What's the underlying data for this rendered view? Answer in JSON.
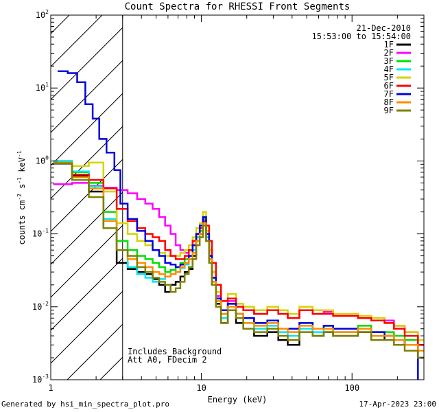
{
  "chart_data": {
    "type": "line",
    "scale": "log-log",
    "title": "Count Spectra for RHESSI Front Segments",
    "xlabel": "Energy (keV)",
    "ylabel_parts": [
      "counts cm",
      "-2",
      " s",
      "-1",
      " keV",
      "-1"
    ],
    "xlim": [
      1,
      300
    ],
    "ylim": [
      0.001,
      100
    ],
    "x_ticks": [
      {
        "value": 1,
        "label": "1"
      },
      {
        "value": 10,
        "label": "10"
      },
      {
        "value": 100,
        "label": "100"
      }
    ],
    "y_ticks": [
      {
        "value": 0.001,
        "base": "10",
        "exp": "-3"
      },
      {
        "value": 0.01,
        "base": "10",
        "exp": "-2"
      },
      {
        "value": 0.1,
        "base": "10",
        "exp": "-1"
      },
      {
        "value": 1,
        "base": "10",
        "exp": "0"
      },
      {
        "value": 10,
        "base": "10",
        "exp": "1"
      },
      {
        "value": 100,
        "base": "10",
        "exp": "2"
      }
    ],
    "attenuator_threshold_kev": 3,
    "annotations": {
      "date": "21-Dec-2010",
      "time_range": "15:53:00 to 15:54:00",
      "bottom_line1": "Includes_Background",
      "bottom_line2": "Att A0, FDecim 2"
    },
    "series": [
      {
        "name": "1F",
        "color": "#000000",
        "energies": [
          1.2,
          1.6,
          2.0,
          2.5,
          3.0,
          3.5,
          4.0,
          4.5,
          5.0,
          5.5,
          6.0,
          6.5,
          7.0,
          7.5,
          8.0,
          8.5,
          9.0,
          9.5,
          10.0,
          10.5,
          11.0,
          11.5,
          12.0,
          13.0,
          14.0,
          16.0,
          18.0,
          20.0,
          25.0,
          30.0,
          35.0,
          40.0,
          50.0,
          60.0,
          70.0,
          80.0,
          100.0,
          120.0,
          150.0,
          180.0,
          200.0,
          250.0,
          300.0
        ],
        "values": [
          0.92,
          0.62,
          0.38,
          0.12,
          0.04,
          0.033,
          0.03,
          0.028,
          0.024,
          0.02,
          0.016,
          0.02,
          0.022,
          0.026,
          0.03,
          0.033,
          0.05,
          0.08,
          0.1,
          0.15,
          0.08,
          0.045,
          0.02,
          0.011,
          0.006,
          0.01,
          0.006,
          0.005,
          0.004,
          0.0045,
          0.0035,
          0.003,
          0.005,
          0.004,
          0.0045,
          0.004,
          0.004,
          0.0045,
          0.0035,
          0.004,
          0.0035,
          0.003,
          0.002
        ]
      },
      {
        "name": "2F",
        "color": "#ff00ff",
        "energies": [
          1.2,
          1.6,
          2.0,
          2.5,
          3.0,
          3.5,
          4.0,
          4.5,
          5.0,
          5.5,
          6.0,
          6.5,
          7.0,
          7.5,
          8.0,
          8.5,
          9.0,
          9.5,
          10.0,
          10.5,
          11.0,
          11.5,
          12.0,
          13.0,
          14.0,
          16.0,
          18.0,
          20.0,
          25.0,
          30.0,
          35.0,
          40.0,
          50.0,
          60.0,
          70.0,
          80.0,
          100.0,
          120.0,
          150.0,
          180.0,
          200.0,
          250.0,
          300.0
        ],
        "values": [
          0.48,
          0.5,
          0.46,
          0.43,
          0.4,
          0.36,
          0.3,
          0.26,
          0.22,
          0.17,
          0.13,
          0.1,
          0.07,
          0.06,
          0.055,
          0.06,
          0.07,
          0.1,
          0.12,
          0.14,
          0.1,
          0.06,
          0.03,
          0.014,
          0.009,
          0.012,
          0.01,
          0.009,
          0.008,
          0.009,
          0.008,
          0.007,
          0.009,
          0.008,
          0.0085,
          0.008,
          0.008,
          0.0075,
          0.007,
          0.0065,
          0.0055,
          0.0045,
          0.003
        ]
      },
      {
        "name": "3F",
        "color": "#00e000",
        "energies": [
          1.2,
          1.6,
          2.0,
          2.5,
          3.0,
          3.5,
          4.0,
          4.5,
          5.0,
          5.5,
          6.0,
          6.5,
          7.0,
          7.5,
          8.0,
          8.5,
          9.0,
          9.5,
          10.0,
          10.5,
          11.0,
          11.5,
          12.0,
          13.0,
          14.0,
          16.0,
          18.0,
          20.0,
          25.0,
          30.0,
          35.0,
          40.0,
          50.0,
          60.0,
          70.0,
          80.0,
          100.0,
          120.0,
          150.0,
          180.0,
          200.0,
          250.0,
          300.0
        ],
        "values": [
          0.95,
          0.7,
          0.5,
          0.2,
          0.08,
          0.06,
          0.05,
          0.045,
          0.04,
          0.035,
          0.03,
          0.032,
          0.035,
          0.04,
          0.045,
          0.05,
          0.06,
          0.09,
          0.11,
          0.16,
          0.09,
          0.05,
          0.025,
          0.013,
          0.008,
          0.011,
          0.008,
          0.007,
          0.006,
          0.0065,
          0.005,
          0.005,
          0.006,
          0.005,
          0.0055,
          0.005,
          0.005,
          0.0055,
          0.0045,
          0.0045,
          0.004,
          0.0035,
          0.0025
        ]
      },
      {
        "name": "4F",
        "color": "#00e8f0",
        "energies": [
          1.2,
          1.6,
          2.0,
          2.5,
          3.0,
          3.5,
          4.0,
          4.5,
          5.0,
          5.5,
          6.0,
          6.5,
          7.0,
          7.5,
          8.0,
          8.5,
          9.0,
          9.5,
          10.0,
          10.5,
          11.0,
          11.5,
          12.0,
          13.0,
          14.0,
          16.0,
          18.0,
          20.0,
          25.0,
          30.0,
          35.0,
          40.0,
          50.0,
          60.0,
          70.0,
          80.0,
          100.0,
          120.0,
          150.0,
          180.0,
          200.0,
          250.0,
          300.0
        ],
        "values": [
          1.0,
          0.72,
          0.45,
          0.16,
          0.06,
          0.035,
          0.028,
          0.025,
          0.022,
          0.024,
          0.026,
          0.028,
          0.03,
          0.034,
          0.038,
          0.045,
          0.06,
          0.09,
          0.12,
          0.17,
          0.09,
          0.05,
          0.022,
          0.012,
          0.007,
          0.01,
          0.008,
          0.006,
          0.005,
          0.0055,
          0.0045,
          0.004,
          0.005,
          0.0045,
          0.005,
          0.0045,
          0.0045,
          0.005,
          0.004,
          0.004,
          0.0035,
          0.003,
          0.0025
        ]
      },
      {
        "name": "5F",
        "color": "#d4d400",
        "energies": [
          1.2,
          1.6,
          2.0,
          2.5,
          3.0,
          3.5,
          4.0,
          4.5,
          5.0,
          5.5,
          6.0,
          6.5,
          7.0,
          7.5,
          8.0,
          8.5,
          9.0,
          9.5,
          10.0,
          10.5,
          11.0,
          11.5,
          12.0,
          13.0,
          14.0,
          16.0,
          18.0,
          20.0,
          25.0,
          30.0,
          35.0,
          40.0,
          50.0,
          60.0,
          70.0,
          80.0,
          100.0,
          120.0,
          150.0,
          180.0,
          200.0,
          250.0,
          300.0
        ],
        "values": [
          0.95,
          0.85,
          0.95,
          0.38,
          0.14,
          0.1,
          0.08,
          0.07,
          0.06,
          0.055,
          0.05,
          0.05,
          0.05,
          0.055,
          0.06,
          0.07,
          0.09,
          0.12,
          0.14,
          0.2,
          0.11,
          0.06,
          0.03,
          0.016,
          0.012,
          0.015,
          0.011,
          0.01,
          0.009,
          0.01,
          0.009,
          0.008,
          0.01,
          0.009,
          0.009,
          0.008,
          0.008,
          0.0075,
          0.007,
          0.006,
          0.0055,
          0.0045,
          0.0035
        ]
      },
      {
        "name": "6F",
        "color": "#ff0000",
        "energies": [
          1.2,
          1.6,
          2.0,
          2.5,
          3.0,
          3.5,
          4.0,
          4.5,
          5.0,
          5.5,
          6.0,
          6.5,
          7.0,
          7.5,
          8.0,
          8.5,
          9.0,
          9.5,
          10.0,
          10.5,
          11.0,
          11.5,
          12.0,
          13.0,
          14.0,
          16.0,
          18.0,
          20.0,
          25.0,
          30.0,
          35.0,
          40.0,
          50.0,
          60.0,
          70.0,
          80.0,
          100.0,
          120.0,
          150.0,
          180.0,
          200.0,
          250.0,
          300.0
        ],
        "values": [
          0.93,
          0.65,
          0.55,
          0.42,
          0.22,
          0.15,
          0.12,
          0.1,
          0.09,
          0.08,
          0.06,
          0.05,
          0.045,
          0.045,
          0.05,
          0.06,
          0.08,
          0.1,
          0.12,
          0.15,
          0.13,
          0.08,
          0.04,
          0.02,
          0.012,
          0.013,
          0.01,
          0.009,
          0.008,
          0.009,
          0.008,
          0.007,
          0.009,
          0.008,
          0.008,
          0.0075,
          0.0075,
          0.007,
          0.0065,
          0.006,
          0.005,
          0.004,
          0.003
        ]
      },
      {
        "name": "7F",
        "color": "#0000e0",
        "energies": [
          1.2,
          1.4,
          1.6,
          1.8,
          2.0,
          2.2,
          2.5,
          2.8,
          3.0,
          3.5,
          4.0,
          4.5,
          5.0,
          5.5,
          6.0,
          6.5,
          7.0,
          7.5,
          8.0,
          8.5,
          9.0,
          9.5,
          10.0,
          10.5,
          11.0,
          11.5,
          12.0,
          13.0,
          14.0,
          16.0,
          18.0,
          20.0,
          25.0,
          30.0,
          35.0,
          40.0,
          50.0,
          60.0,
          70.0,
          80.0,
          100.0,
          120.0,
          150.0,
          180.0,
          200.0,
          250.0,
          300.0
        ],
        "values": [
          17.0,
          16.0,
          12.0,
          6.0,
          3.8,
          2.0,
          1.3,
          0.75,
          0.26,
          0.16,
          0.11,
          0.08,
          0.06,
          0.05,
          0.04,
          0.038,
          0.035,
          0.038,
          0.04,
          0.05,
          0.07,
          0.1,
          0.13,
          0.17,
          0.1,
          0.05,
          0.025,
          0.013,
          0.009,
          0.011,
          0.008,
          0.007,
          0.006,
          0.0065,
          0.005,
          0.005,
          0.006,
          0.005,
          0.0055,
          0.005,
          0.005,
          0.005,
          0.0045,
          0.004,
          0.0035,
          0.003,
          0.0009
        ]
      },
      {
        "name": "8F",
        "color": "#ff8c00",
        "energies": [
          1.2,
          1.6,
          2.0,
          2.5,
          3.0,
          3.5,
          4.0,
          4.5,
          5.0,
          5.5,
          6.0,
          6.5,
          7.0,
          7.5,
          8.0,
          8.5,
          9.0,
          9.5,
          10.0,
          10.5,
          11.0,
          11.5,
          12.0,
          13.0,
          14.0,
          16.0,
          18.0,
          20.0,
          25.0,
          30.0,
          35.0,
          40.0,
          50.0,
          60.0,
          70.0,
          80.0,
          100.0,
          120.0,
          150.0,
          180.0,
          200.0,
          250.0,
          300.0
        ],
        "values": [
          0.95,
          0.6,
          0.42,
          0.15,
          0.06,
          0.045,
          0.04,
          0.035,
          0.03,
          0.028,
          0.026,
          0.028,
          0.03,
          0.035,
          0.04,
          0.045,
          0.055,
          0.08,
          0.1,
          0.14,
          0.08,
          0.045,
          0.022,
          0.012,
          0.008,
          0.01,
          0.008,
          0.006,
          0.0055,
          0.006,
          0.005,
          0.0045,
          0.0055,
          0.005,
          0.005,
          0.0045,
          0.0045,
          0.005,
          0.004,
          0.004,
          0.0035,
          0.003,
          0.0025
        ]
      },
      {
        "name": "9F",
        "color": "#808000",
        "energies": [
          1.2,
          1.6,
          2.0,
          2.5,
          3.0,
          3.5,
          4.0,
          4.5,
          5.0,
          5.5,
          6.0,
          6.5,
          7.0,
          7.5,
          8.0,
          8.5,
          9.0,
          9.5,
          10.0,
          10.5,
          11.0,
          11.5,
          12.0,
          13.0,
          14.0,
          16.0,
          18.0,
          20.0,
          25.0,
          30.0,
          35.0,
          40.0,
          50.0,
          60.0,
          70.0,
          80.0,
          100.0,
          120.0,
          150.0,
          180.0,
          200.0,
          250.0,
          300.0
        ],
        "values": [
          0.93,
          0.55,
          0.32,
          0.12,
          0.06,
          0.05,
          0.035,
          0.03,
          0.025,
          0.022,
          0.02,
          0.016,
          0.018,
          0.022,
          0.028,
          0.035,
          0.045,
          0.07,
          0.09,
          0.13,
          0.08,
          0.04,
          0.02,
          0.01,
          0.006,
          0.009,
          0.007,
          0.005,
          0.0045,
          0.005,
          0.004,
          0.0035,
          0.0045,
          0.004,
          0.0045,
          0.004,
          0.004,
          0.0045,
          0.0035,
          0.0035,
          0.003,
          0.0025,
          0.002
        ]
      }
    ]
  },
  "footer": {
    "left": "Generated by hsi_min_spectra_plot.pro",
    "right": "17-Apr-2023 23:00"
  }
}
